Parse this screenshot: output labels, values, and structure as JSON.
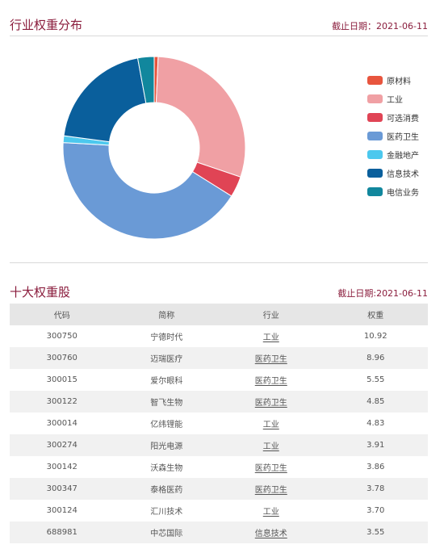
{
  "section1": {
    "title": "行业权重分布",
    "date": "截止日期：2021-06-11"
  },
  "section2": {
    "title": "十大权重股",
    "date": "截止日期:2021-06-11"
  },
  "chart_data": {
    "type": "pie",
    "donut": true,
    "legend_position": "right",
    "categories": [
      "原材料",
      "工业",
      "可选消费",
      "医药卫生",
      "金融地产",
      "信息技术",
      "电信业务"
    ],
    "values": [
      0.7,
      29.5,
      3.7,
      42.0,
      1.2,
      20.0,
      2.9
    ],
    "colors": [
      "#e8553e",
      "#f0a0a4",
      "#e04455",
      "#6a9ad6",
      "#4cc8ee",
      "#0a5f9c",
      "#11879d"
    ]
  },
  "table": {
    "headers": [
      "代码",
      "简称",
      "行业",
      "权重"
    ],
    "rows": [
      {
        "code": "300750",
        "name": "宁德时代",
        "industry": "工业",
        "weight": "10.92"
      },
      {
        "code": "300760",
        "name": "迈瑞医疗",
        "industry": "医药卫生",
        "weight": "8.96"
      },
      {
        "code": "300015",
        "name": "爱尔眼科",
        "industry": "医药卫生",
        "weight": "5.55"
      },
      {
        "code": "300122",
        "name": "智飞生物",
        "industry": "医药卫生",
        "weight": "4.85"
      },
      {
        "code": "300014",
        "name": "亿纬锂能",
        "industry": "工业",
        "weight": "4.83"
      },
      {
        "code": "300274",
        "name": "阳光电源",
        "industry": "工业",
        "weight": "3.91"
      },
      {
        "code": "300142",
        "name": "沃森生物",
        "industry": "医药卫生",
        "weight": "3.86"
      },
      {
        "code": "300347",
        "name": "泰格医药",
        "industry": "医药卫生",
        "weight": "3.78"
      },
      {
        "code": "300124",
        "name": "汇川技术",
        "industry": "工业",
        "weight": "3.70"
      },
      {
        "code": "688981",
        "name": "中芯国际",
        "industry": "信息技术",
        "weight": "3.55"
      }
    ]
  }
}
